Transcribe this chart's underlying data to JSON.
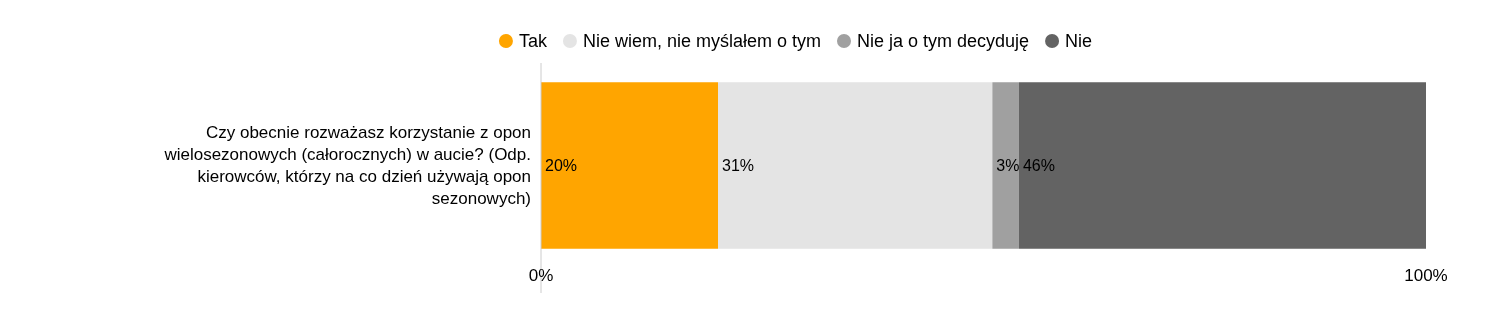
{
  "chart_data": {
    "type": "bar",
    "orientation": "horizontal",
    "stacked": true,
    "categories": [
      "Czy obecnie rozważasz korzystanie z opon wielosezonowych (całorocznych) w aucie? (Odp. kierowców, którzy na co dzień używają opon sezonowych)"
    ],
    "series": [
      {
        "name": "Tak",
        "color": "#ffa500",
        "values": [
          20
        ],
        "value_labels": [
          "20%"
        ]
      },
      {
        "name": "Nie wiem, nie myślałem o tym",
        "color": "#e4e4e4",
        "values": [
          31
        ],
        "value_labels": [
          "31%"
        ]
      },
      {
        "name": "Nie ja o tym decyduję",
        "color": "#a0a0a0",
        "values": [
          3
        ],
        "value_labels": [
          "3%"
        ]
      },
      {
        "name": "Nie",
        "color": "#636363",
        "values": [
          46
        ],
        "value_labels": [
          "46%"
        ]
      }
    ],
    "xlim": [
      0,
      100
    ],
    "xticks": [
      {
        "value": 0,
        "label": "0%"
      },
      {
        "value": 100,
        "label": "100%"
      }
    ],
    "grid": false,
    "legend": "top"
  }
}
